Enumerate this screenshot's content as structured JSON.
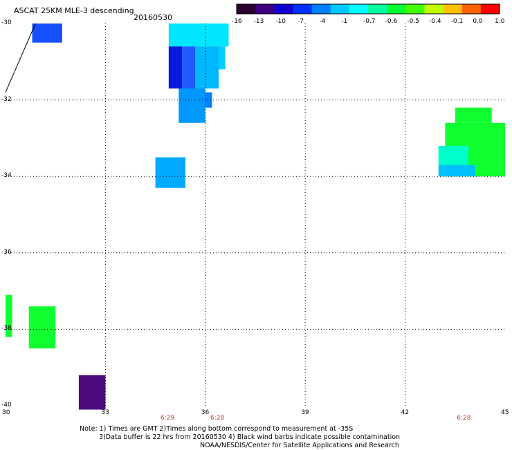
{
  "header": {
    "title": "ASCAT 25KM MLE-3 descending",
    "date": "20160530"
  },
  "colorbar": {
    "ticks": [
      "-16",
      "-13",
      "-10",
      "-7",
      "-4",
      "-1",
      "-0.7",
      "-0.6",
      "-0.5",
      "-0.4",
      "-0.1",
      "0.0",
      "1.0"
    ],
    "colors": [
      "#2a0030",
      "#3d0080",
      "#1000d0",
      "#0030ff",
      "#0080ff",
      "#00c8ff",
      "#00ffff",
      "#00ffa0",
      "#00ff30",
      "#40ff00",
      "#c0ff00",
      "#ffc000",
      "#ff6000",
      "#ff0000"
    ]
  },
  "axes": {
    "y_labels": [
      "-30",
      "-32",
      "-34",
      "-36",
      "-38",
      "-40"
    ],
    "y_values": [
      -30,
      -32,
      -34,
      -36,
      -38,
      -40
    ],
    "x_labels": [
      "30",
      "33",
      "36",
      "39",
      "42",
      "45"
    ],
    "x_values": [
      30,
      33,
      36,
      39,
      42,
      45
    ],
    "lat_range": [
      -30,
      -40
    ],
    "lon_range": [
      30,
      45
    ],
    "grid": true
  },
  "pass_times": [
    {
      "label": "6:29",
      "lon": 34.9
    },
    {
      "label": "6:28",
      "lon": 36.4
    },
    {
      "label": "6:28",
      "lon": 43.8
    }
  ],
  "note": {
    "line1": "Note: 1) Times are GMT 2)Times along bottom correspond to measurement at -35S",
    "line2": "3)Data buffer is 22 hrs from 20160530 4) Black wind barbs indicate possible contamination",
    "line3": "NOAA/NESDIS/Center for Satellite Applications and Research"
  },
  "data_cells": [
    {
      "lon": [
        30.8,
        31.7
      ],
      "lat": [
        -30.0,
        -30.5
      ],
      "value": -7,
      "color": "#1650ff"
    },
    {
      "lon": [
        34.9,
        36.7
      ],
      "lat": [
        -30.0,
        -30.6
      ],
      "value": -1,
      "color": "#00e6ff"
    },
    {
      "lon": [
        34.9,
        35.3
      ],
      "lat": [
        -30.6,
        -31.7
      ],
      "value": -10,
      "color": "#0a1adc"
    },
    {
      "lon": [
        35.3,
        35.7
      ],
      "lat": [
        -30.6,
        -31.7
      ],
      "value": -7,
      "color": "#1e5aff"
    },
    {
      "lon": [
        35.7,
        36.4
      ],
      "lat": [
        -30.6,
        -31.7
      ],
      "value": -1,
      "color": "#00b8ff"
    },
    {
      "lon": [
        36.4,
        36.6
      ],
      "lat": [
        -30.6,
        -31.2
      ],
      "value": -1,
      "color": "#00d0ff"
    },
    {
      "lon": [
        35.2,
        36.0
      ],
      "lat": [
        -31.7,
        -32.6
      ],
      "value": -4,
      "color": "#0098ff"
    },
    {
      "lon": [
        36.0,
        36.2
      ],
      "lat": [
        -31.8,
        -32.2
      ],
      "value": -4,
      "color": "#0080ff"
    },
    {
      "lon": [
        34.5,
        35.4
      ],
      "lat": [
        -33.5,
        -34.3
      ],
      "value": -4,
      "color": "#00aaff"
    },
    {
      "lon": [
        43.5,
        44.6
      ],
      "lat": [
        -32.2,
        -32.6
      ],
      "value": -0.5,
      "color": "#10ff30"
    },
    {
      "lon": [
        43.2,
        45.0
      ],
      "lat": [
        -32.6,
        -34.0
      ],
      "value": -0.5,
      "color": "#10ff30"
    },
    {
      "lon": [
        43.0,
        43.9
      ],
      "lat": [
        -33.2,
        -33.7
      ],
      "value": -0.6,
      "color": "#00ffc8"
    },
    {
      "lon": [
        43.0,
        44.1
      ],
      "lat": [
        -33.7,
        -34.0
      ],
      "value": -1,
      "color": "#00c0ff"
    },
    {
      "lon": [
        30.0,
        30.2
      ],
      "lat": [
        -37.1,
        -38.2
      ],
      "value": -0.5,
      "color": "#10ff30"
    },
    {
      "lon": [
        30.7,
        31.5
      ],
      "lat": [
        -37.4,
        -38.5
      ],
      "value": -0.5,
      "color": "#10ff30"
    },
    {
      "lon": [
        32.2,
        33.0
      ],
      "lat": [
        -39.2,
        -40.1
      ],
      "value": -13,
      "color": "#4a0a7a"
    }
  ],
  "coastline": [
    [
      30.0,
      -31.8
    ],
    [
      30.4,
      -31.0
    ],
    [
      30.9,
      -30.0
    ]
  ]
}
